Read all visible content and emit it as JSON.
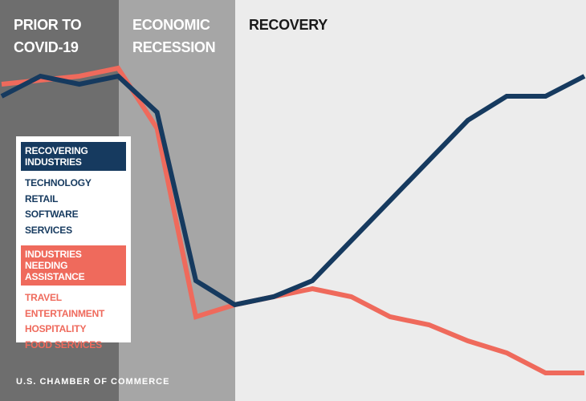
{
  "chart_data": {
    "type": "line",
    "regions": [
      {
        "label": [
          "PRIOR TO",
          "COVID-19"
        ],
        "color": "#6e6e6e",
        "label_color": "#ffffff"
      },
      {
        "label": [
          "ECONOMIC",
          "RECESSION"
        ],
        "color": "#a6a6a6",
        "label_color": "#ffffff"
      },
      {
        "label": [
          "RECOVERY"
        ],
        "color": "#ececec",
        "label_color": "#1a1a1a"
      }
    ],
    "categories": [
      null,
      null,
      null,
      null,
      null,
      null,
      null,
      null,
      null,
      null,
      null,
      null,
      null,
      null,
      null,
      null
    ],
    "ylim": [
      0,
      100
    ],
    "series": [
      {
        "name": "RECOVERING INDUSTRIES",
        "color": "#163a5f",
        "items": [
          "TECHNOLOGY",
          "RETAIL",
          "SOFTWARE SERVICES"
        ],
        "values": [
          76,
          81,
          79,
          81,
          72,
          30,
          24,
          26,
          30,
          40,
          50,
          60,
          70,
          76,
          76,
          81
        ]
      },
      {
        "name": "INDUSTRIES NEEDING ASSISTANCE",
        "color": "#ef6a5c",
        "items": [
          "TRAVEL",
          "ENTERTAINMENT",
          "HOSPITALITY",
          "FOOD SERVICES"
        ],
        "values": [
          79,
          80,
          81,
          83,
          68,
          21,
          24,
          26,
          28,
          26,
          21,
          19,
          15,
          12,
          7,
          7
        ]
      }
    ],
    "footer": "U.S. CHAMBER OF COMMERCE"
  }
}
